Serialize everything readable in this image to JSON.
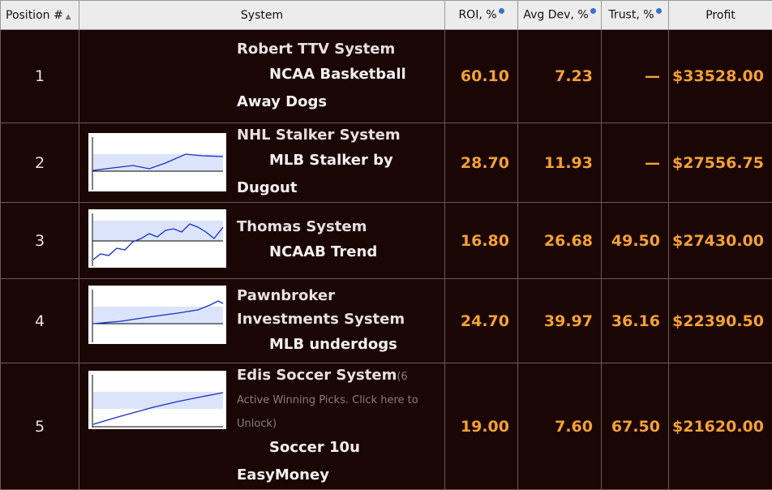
{
  "header": {
    "columns": [
      "Position #",
      "System",
      "ROI, %",
      "Avg Dev, %",
      "Trust, %",
      "Profit"
    ]
  },
  "table": {
    "rows": [
      {
        "position": "1",
        "system": "Robert TTV System",
        "subsystem": "NCAA Basketball Away Dogs",
        "roi": "60.10",
        "avg_dev": "7.23",
        "trust": "—",
        "profit": "$33528.00"
      },
      {
        "position": "2",
        "system": "NHL Stalker System",
        "subsystem": "MLB Stalker by Dugout",
        "roi": "28.70",
        "avg_dev": "11.93",
        "trust": "—",
        "profit": "$27556.75"
      },
      {
        "position": "3",
        "system": "Thomas System",
        "subsystem": "NCAAB Trend",
        "roi": "16.80",
        "avg_dev": "26.68",
        "trust": "49.50",
        "profit": "$27430.00"
      },
      {
        "position": "4",
        "system": "Pawnbroker Investments System",
        "subsystem": "MLB underdogs",
        "roi": "24.70",
        "avg_dev": "39.97",
        "trust": "36.16",
        "profit": "$22390.50"
      },
      {
        "position": "5",
        "system": "Edis Soccer System",
        "note": "(6 Active Winning Picks. Click here to Unlock)",
        "subsystem": "Soccer 10u EasyMoney",
        "roi": "19.00",
        "avg_dev": "7.60",
        "trust": "67.50",
        "profit": "$21620.00"
      }
    ]
  }
}
